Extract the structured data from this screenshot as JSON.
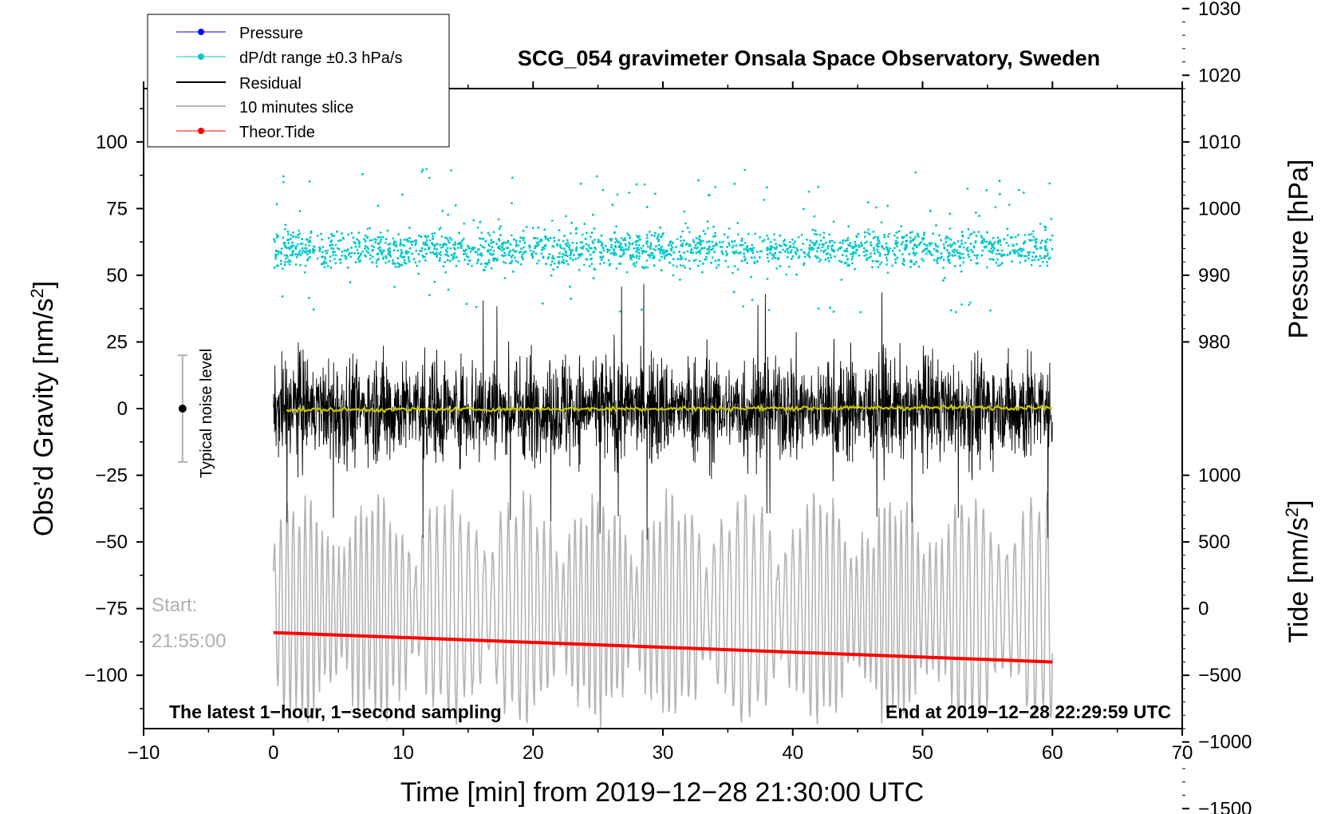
{
  "chart_data": {
    "type": "line",
    "title": "SCG_054 gravimeter Onsala Space Observatory, Sweden",
    "xlabel": "Time [min] from 2019−12−28 21:30:00 UTC",
    "ylabel": "Obs’d Gravity [nm/s",
    "ylabel_sup": "2",
    "ylabel_close": "]",
    "y2label_top": "Pressure [hPa]",
    "y2label_bottom": "Tide [nm/s",
    "y2label_bottom_sup": "2",
    "y2label_bottom_close": "]",
    "xlim": [
      -10,
      70
    ],
    "ylim": [
      -120,
      120
    ],
    "pressure_lim": [
      970,
      1030
    ],
    "tide_lim": [
      -1500,
      1000
    ],
    "x_ticks": [
      -10,
      0,
      10,
      20,
      30,
      40,
      50,
      60,
      70
    ],
    "x_tick_labels": [
      "−10",
      "0",
      "10",
      "20",
      "30",
      "40",
      "50",
      "60",
      "70"
    ],
    "y_ticks": [
      100,
      75,
      50,
      25,
      0,
      -25,
      -50,
      -75,
      -100
    ],
    "y_tick_labels": [
      "100",
      "75",
      "50",
      "25",
      "0",
      "−25",
      "−50",
      "−75",
      "−100"
    ],
    "pressure_ticks": [
      1030,
      1020,
      1010,
      1000,
      990,
      980
    ],
    "pressure_tick_labels": [
      "1030",
      "1020",
      "1010",
      "1000",
      "990",
      "980"
    ],
    "tide_ticks": [
      1000,
      500,
      0,
      -500,
      -1000,
      -1500
    ],
    "tide_tick_labels": [
      "1000",
      "500",
      "0",
      "−500",
      "−1000",
      "−1500"
    ],
    "legend": [
      {
        "label": "Pressure",
        "color": "#0000ff"
      },
      {
        "label": "dP/dt range ±0.3 hPa/s",
        "color": "#00c8c8"
      },
      {
        "label": "Residual",
        "color": "#000000"
      },
      {
        "label": "10 minutes slice",
        "color": "#b4b4b4"
      },
      {
        "label": "Theor.Tide",
        "color": "#ff0000"
      }
    ],
    "legend_position": "top-left",
    "annotations": {
      "start_label": "Start:",
      "start_time": "21:55:00",
      "noise_label": "Typical noise level",
      "bottom_left": "The latest 1−hour, 1−second sampling",
      "bottom_right": "End at 2019−12−28 22:29:59 UTC"
    },
    "series": [
      {
        "name": "dP/dt range",
        "color": "#00c8c8",
        "x_range": [
          0,
          60
        ],
        "y_center": 60,
        "y_spread": 20,
        "points_approx": 3000
      },
      {
        "name": "Residual",
        "color": "#000000",
        "x_range": [
          0,
          60
        ],
        "y_center": 0,
        "amplitude_approx": 30
      },
      {
        "name": "Residual smoothed",
        "color": "#c8c800",
        "x_range": [
          1,
          60
        ],
        "y_start": -0.5,
        "y_end": 0.5
      },
      {
        "name": "10 minutes slice",
        "color": "#b4b4b4",
        "x_range": [
          0,
          60
        ],
        "y_center": -75,
        "amplitude_approx": 35
      },
      {
        "name": "Theor.Tide",
        "color": "#ff0000",
        "x": [
          0,
          60
        ],
        "y_gravity_units": [
          -84,
          -95
        ]
      },
      {
        "name": "Typical noise level",
        "color": "#000000",
        "x": -7,
        "y": 0,
        "error": 20
      }
    ]
  }
}
